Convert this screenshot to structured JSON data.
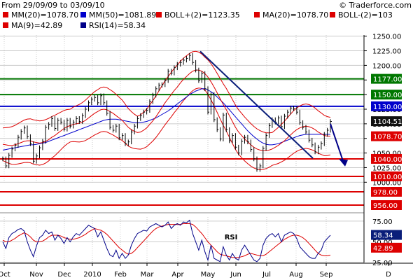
{
  "header": {
    "range": "From 29/09/09 to 03/09/10",
    "source": "© Traderforce.com",
    "legend": [
      {
        "color": "#dd0000",
        "text": "MM(20)=1078.70"
      },
      {
        "color": "#0000cc",
        "text": "MM(50)=1081.89"
      },
      {
        "color": "#dd0000",
        "text": "BOLL+(2)=1123.35"
      },
      {
        "color": "#dd0000",
        "text": "MA(20)=1078.70"
      },
      {
        "color": "#dd0000",
        "text": "BOLL-(2)=103"
      },
      {
        "color": "#dd0000",
        "text": "MA(9)=42.89"
      },
      {
        "color": "#000088",
        "text": "RSI(14)=58.34"
      }
    ]
  },
  "colors": {
    "price": "#000000",
    "ma20": "#dd0000",
    "mm50": "#0000cc",
    "boll": "#dd0000",
    "green": "#007700",
    "blue": "#0000cc",
    "red": "#dd0000",
    "navy": "#0a1e7a",
    "rsi": "#000088",
    "rsi_ma": "#dd0000",
    "grid": "#cccccc",
    "dark_label": "#111111"
  },
  "chart_data": {
    "type": "line",
    "y_ticks": [
      "1250.00",
      "1225.00",
      "1200.00",
      "1175.00",
      "1150.00",
      "1125.00",
      "1100.00",
      "1075.00",
      "1050.00",
      "1025.00",
      "1000.00"
    ],
    "x_ticks": [
      "Oct",
      "Nov",
      "Dec",
      "2010",
      "Feb",
      "Mar",
      "Apr",
      "May",
      "Jun",
      "Jul",
      "Aug",
      "Sep",
      "D"
    ],
    "rsi_ticks": [
      "75.00",
      "50.00",
      "25.00"
    ],
    "ylim": [
      998,
      1252
    ],
    "rsi_ylim": [
      25,
      80
    ],
    "price_close": [
      1040,
      1028,
      1046,
      1057,
      1063,
      1077,
      1087,
      1093,
      1078,
      1066,
      1036,
      1045,
      1059,
      1070,
      1094,
      1099,
      1109,
      1092,
      1106,
      1103,
      1091,
      1106,
      1096,
      1103,
      1109,
      1104,
      1114,
      1125,
      1136,
      1142,
      1145,
      1136,
      1148,
      1136,
      1118,
      1094,
      1089,
      1096,
      1076,
      1080,
      1066,
      1069,
      1086,
      1096,
      1109,
      1114,
      1120,
      1123,
      1138,
      1149,
      1160,
      1166,
      1167,
      1174,
      1190,
      1187,
      1196,
      1202,
      1205,
      1209,
      1212,
      1217,
      1205,
      1192,
      1174,
      1186,
      1160,
      1120,
      1150,
      1107,
      1090,
      1074,
      1115,
      1090,
      1071,
      1080,
      1060,
      1050,
      1070,
      1077,
      1069,
      1056,
      1040,
      1022,
      1028,
      1058,
      1080,
      1097,
      1107,
      1103,
      1110,
      1095,
      1113,
      1120,
      1127,
      1126,
      1120,
      1102,
      1094,
      1086,
      1072,
      1064,
      1052,
      1060,
      1066,
      1082,
      1089,
      1104
    ],
    "ma20": [
      1065,
      1064,
      1063,
      1063,
      1064,
      1066,
      1068,
      1070,
      1071,
      1071,
      1069,
      1068,
      1067,
      1068,
      1070,
      1073,
      1077,
      1080,
      1084,
      1088,
      1092,
      1095,
      1097,
      1099,
      1100,
      1101,
      1103,
      1106,
      1110,
      1114,
      1118,
      1121,
      1124,
      1125,
      1124,
      1121,
      1118,
      1114,
      1110,
      1106,
      1100,
      1094,
      1090,
      1087,
      1085,
      1086,
      1089,
      1093,
      1099,
      1105,
      1112,
      1120,
      1128,
      1136,
      1143,
      1150,
      1157,
      1163,
      1170,
      1176,
      1181,
      1186,
      1190,
      1192,
      1192,
      1190,
      1186,
      1180,
      1172,
      1163,
      1153,
      1143,
      1133,
      1124,
      1114,
      1104,
      1094,
      1086,
      1080,
      1074,
      1069,
      1064,
      1060,
      1057,
      1055,
      1054,
      1054,
      1055,
      1057,
      1060,
      1063,
      1067,
      1071,
      1076,
      1081,
      1086,
      1090,
      1093,
      1095,
      1096,
      1095,
      1093,
      1090,
      1086,
      1083,
      1080,
      1079,
      1079
    ],
    "mm50": [
      1055,
      1056,
      1057,
      1058,
      1059,
      1060,
      1061,
      1062,
      1063,
      1064,
      1064,
      1065,
      1066,
      1067,
      1068,
      1070,
      1072,
      1074,
      1076,
      1078,
      1080,
      1082,
      1084,
      1086,
      1088,
      1090,
      1092,
      1094,
      1096,
      1098,
      1100,
      1102,
      1104,
      1106,
      1107,
      1108,
      1108,
      1108,
      1107,
      1106,
      1105,
      1104,
      1103,
      1102,
      1102,
      1102,
      1103,
      1104,
      1106,
      1108,
      1110,
      1113,
      1116,
      1119,
      1122,
      1126,
      1130,
      1134,
      1138,
      1142,
      1146,
      1150,
      1153,
      1156,
      1158,
      1160,
      1160,
      1158,
      1155,
      1151,
      1146,
      1141,
      1136,
      1130,
      1124,
      1118,
      1112,
      1106,
      1100,
      1094,
      1088,
      1083,
      1078,
      1074,
      1070,
      1067,
      1065,
      1064,
      1064,
      1065,
      1066,
      1068,
      1070,
      1072,
      1074,
      1076,
      1078,
      1080,
      1081,
      1082,
      1082,
      1082,
      1082,
      1082,
      1082,
      1082,
      1082,
      1082
    ],
    "rsi": [
      50,
      42,
      55,
      60,
      62,
      65,
      66,
      63,
      50,
      40,
      32,
      45,
      55,
      58,
      64,
      60,
      62,
      52,
      58,
      54,
      48,
      55,
      50,
      56,
      60,
      58,
      62,
      66,
      70,
      68,
      66,
      56,
      62,
      52,
      42,
      34,
      32,
      40,
      30,
      36,
      30,
      34,
      46,
      54,
      60,
      62,
      64,
      63,
      68,
      70,
      72,
      70,
      68,
      70,
      74,
      66,
      70,
      72,
      70,
      74,
      73,
      76,
      60,
      50,
      40,
      52,
      38,
      28,
      46,
      30,
      28,
      26,
      44,
      34,
      28,
      36,
      30,
      28,
      40,
      46,
      40,
      34,
      28,
      26,
      30,
      46,
      54,
      58,
      60,
      56,
      60,
      50,
      58,
      60,
      62,
      60,
      54,
      44,
      40,
      36,
      32,
      30,
      30,
      36,
      40,
      50,
      54,
      58
    ],
    "rsi_ma": [
      52,
      50,
      50,
      52,
      54,
      57,
      59,
      61,
      59,
      56,
      52,
      50,
      50,
      51,
      53,
      56,
      58,
      58,
      58,
      57,
      55,
      54,
      53,
      53,
      54,
      55,
      57,
      59,
      62,
      64,
      66,
      65,
      64,
      62,
      59,
      55,
      51,
      47,
      43,
      40,
      37,
      35,
      36,
      39,
      43,
      47,
      51,
      55,
      59,
      63,
      66,
      68,
      69,
      70,
      71,
      71,
      71,
      71,
      71,
      72,
      72,
      72,
      71,
      68,
      64,
      60,
      55,
      50,
      46,
      42,
      38,
      35,
      34,
      33,
      32,
      31,
      31,
      31,
      32,
      33,
      35,
      36,
      35,
      34,
      33,
      33,
      35,
      38,
      41,
      44,
      47,
      50,
      53,
      55,
      57,
      58,
      58,
      57,
      55,
      52,
      48,
      44,
      40,
      36,
      34,
      33,
      33,
      34
    ],
    "levels": [
      {
        "value": 1177,
        "label": "1177.00",
        "kind": "green"
      },
      {
        "value": 1150,
        "label": "1150.00",
        "kind": "green"
      },
      {
        "value": 1130,
        "label": "1130.00",
        "kind": "blue"
      },
      {
        "value": 1040,
        "label": "1040.00",
        "kind": "red"
      },
      {
        "value": 1010,
        "label": "1010.00",
        "kind": "red"
      }
    ],
    "below_levels": [
      {
        "value": 978,
        "label": "978.00"
      },
      {
        "value": 956,
        "label": "956.00"
      }
    ],
    "price_labels": [
      {
        "value": 1104.51,
        "label": "1104.51",
        "kind": "dark"
      },
      {
        "value": 1078.7,
        "label": "1078.70",
        "kind": "red"
      }
    ],
    "rsi_labels": [
      {
        "value": 58.34,
        "label": "58.34",
        "kind": "navy"
      },
      {
        "value": 42.89,
        "label": "42.89",
        "kind": "red"
      }
    ],
    "annotations": {
      "rsi_label": "RSI"
    }
  }
}
